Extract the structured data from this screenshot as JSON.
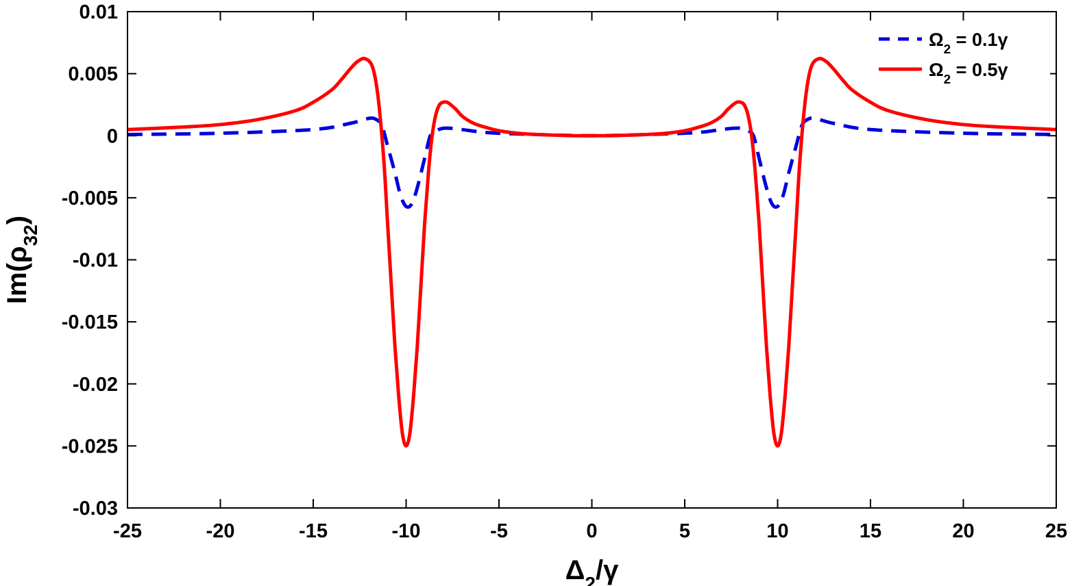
{
  "chart_data": {
    "type": "line",
    "title": "",
    "xlabel": "Δ2/γ",
    "ylabel": "Im(ρ32)",
    "xlim": [
      -25,
      25
    ],
    "ylim": [
      -0.03,
      0.01
    ],
    "xticks": [
      -25,
      -20,
      -15,
      -10,
      -5,
      0,
      5,
      10,
      15,
      20,
      25
    ],
    "xtick_labels": [
      "-25",
      "-20",
      "-15",
      "-10",
      "-5",
      "0",
      "5",
      "10",
      "15",
      "20",
      "25"
    ],
    "yticks": [
      0.01,
      0.005,
      0,
      -0.005,
      -0.01,
      -0.015,
      -0.02,
      -0.025,
      -0.03
    ],
    "ytick_labels": [
      "0.01",
      "0.005",
      "0",
      "-0.005",
      "-0.01",
      "-0.015",
      "-0.02",
      "-0.025",
      "-0.03"
    ],
    "grid": false,
    "legend_position": "top-right",
    "series": [
      {
        "name": "Ω2 = 0.1γ",
        "color": "#0000dd",
        "style": "dashed",
        "x": [
          -25,
          -20,
          -15,
          -13,
          -12,
          -11.6,
          -11.3,
          -11,
          -10.6,
          -10.3,
          -10,
          -9.7,
          -9.4,
          -9,
          -8.7,
          -8.4,
          -8,
          -7.6,
          -7,
          -6,
          -5,
          -3,
          0,
          3,
          5,
          6,
          7,
          7.6,
          8,
          8.4,
          8.7,
          9,
          9.4,
          9.7,
          10,
          10.3,
          10.6,
          11,
          11.3,
          11.6,
          12,
          13,
          15,
          20,
          25
        ],
        "y": [
          0.0001,
          0.0002,
          0.0005,
          0.001,
          0.0014,
          0.0013,
          0.0008,
          -0.0008,
          -0.003,
          -0.0048,
          -0.0057,
          -0.0055,
          -0.0042,
          -0.0018,
          0,
          0.0004,
          0.0006,
          0.0006,
          0.0005,
          0.0003,
          0.0002,
          0.0001,
          0,
          0.0001,
          0.0002,
          0.0003,
          0.0005,
          0.0006,
          0.0006,
          0.0004,
          0,
          -0.0018,
          -0.0042,
          -0.0055,
          -0.0057,
          -0.0048,
          -0.003,
          -0.0008,
          0.0008,
          0.0013,
          0.0014,
          0.001,
          0.0005,
          0.0002,
          0.0001
        ]
      },
      {
        "name": "Ω2 = 0.5γ",
        "color": "#ff0000",
        "style": "solid",
        "x": [
          -25,
          -22,
          -20,
          -18,
          -16,
          -15,
          -14,
          -13.5,
          -13,
          -12.6,
          -12.2,
          -11.8,
          -11.5,
          -11.2,
          -11,
          -10.8,
          -10.6,
          -10.4,
          -10.2,
          -10,
          -9.8,
          -9.6,
          -9.4,
          -9.2,
          -9,
          -8.8,
          -8.6,
          -8.4,
          -8.2,
          -8,
          -7.8,
          -7.6,
          -7.3,
          -7,
          -6.5,
          -6,
          -5,
          -4,
          -3,
          -2,
          -1,
          0,
          1,
          2,
          3,
          4,
          5,
          6,
          6.5,
          7,
          7.3,
          7.6,
          7.8,
          8,
          8.2,
          8.4,
          8.6,
          8.8,
          9,
          9.2,
          9.4,
          9.6,
          9.8,
          10,
          10.2,
          10.4,
          10.6,
          10.8,
          11,
          11.2,
          11.5,
          11.8,
          12.2,
          12.6,
          13,
          13.5,
          14,
          15,
          16,
          18,
          20,
          22,
          25
        ],
        "y": [
          0.0005,
          0.0007,
          0.0009,
          0.0013,
          0.002,
          0.0027,
          0.0037,
          0.0045,
          0.0054,
          0.006,
          0.0062,
          0.0055,
          0.003,
          -0.002,
          -0.007,
          -0.012,
          -0.017,
          -0.021,
          -0.024,
          -0.025,
          -0.024,
          -0.021,
          -0.017,
          -0.012,
          -0.007,
          -0.003,
          0,
          0.0017,
          0.0025,
          0.0027,
          0.0027,
          0.0025,
          0.0021,
          0.0016,
          0.0011,
          0.0008,
          0.0004,
          0.0002,
          0.0001,
          5e-05,
          0,
          0,
          0,
          5e-05,
          0.0001,
          0.0002,
          0.0004,
          0.0008,
          0.0011,
          0.0016,
          0.0021,
          0.0025,
          0.0027,
          0.0027,
          0.0025,
          0.0017,
          0,
          -0.003,
          -0.007,
          -0.012,
          -0.017,
          -0.021,
          -0.024,
          -0.025,
          -0.024,
          -0.021,
          -0.017,
          -0.012,
          -0.007,
          -0.002,
          0.003,
          0.0055,
          0.0062,
          0.006,
          0.0054,
          0.0045,
          0.0037,
          0.0027,
          0.002,
          0.0013,
          0.0009,
          0.0007,
          0.0005
        ]
      }
    ]
  }
}
